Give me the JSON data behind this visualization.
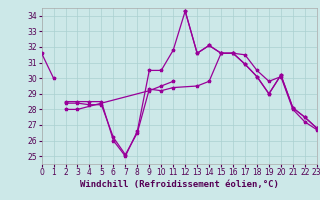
{
  "xlabel": "Windchill (Refroidissement éolien,°C)",
  "xlim": [
    0,
    23
  ],
  "ylim": [
    24.5,
    34.5
  ],
  "yticks": [
    25,
    26,
    27,
    28,
    29,
    30,
    31,
    32,
    33,
    34
  ],
  "xticks": [
    0,
    1,
    2,
    3,
    4,
    5,
    6,
    7,
    8,
    9,
    10,
    11,
    12,
    13,
    14,
    15,
    16,
    17,
    18,
    19,
    20,
    21,
    22,
    23
  ],
  "background_color": "#cce8e8",
  "grid_color": "#aad0d0",
  "line_color": "#990099",
  "lines": [
    [
      31.6,
      30.0,
      null,
      null,
      null,
      null,
      null,
      null,
      null,
      null,
      null,
      null,
      null,
      null,
      null,
      null,
      null,
      null,
      null,
      null,
      null,
      null,
      null,
      null
    ],
    [
      null,
      null,
      null,
      null,
      null,
      null,
      null,
      null,
      null,
      null,
      null,
      null,
      34.3,
      31.6,
      32.1,
      31.6,
      31.6,
      30.9,
      30.1,
      29.0,
      30.2,
      28.1,
      27.5,
      26.8
    ],
    [
      null,
      null,
      28.5,
      28.5,
      28.5,
      28.5,
      26.0,
      25.0,
      26.6,
      30.5,
      30.5,
      31.8,
      34.3,
      31.6,
      32.1,
      31.6,
      31.6,
      30.9,
      30.1,
      29.0,
      30.2,
      28.1,
      27.5,
      26.8
    ],
    [
      null,
      null,
      28.4,
      28.4,
      28.3,
      28.3,
      26.2,
      25.1,
      26.5,
      29.3,
      29.2,
      29.4,
      null,
      29.5,
      29.8,
      31.6,
      31.6,
      31.5,
      30.5,
      29.8,
      30.1,
      28.0,
      27.2,
      26.7
    ],
    [
      null,
      null,
      28.0,
      28.0,
      null,
      null,
      null,
      null,
      null,
      29.2,
      29.5,
      29.8,
      null,
      null,
      null,
      null,
      null,
      null,
      null,
      null,
      null,
      null,
      null,
      null
    ]
  ],
  "fontsize_xlabel": 6.5,
  "fontsize_ticks": 5.5
}
